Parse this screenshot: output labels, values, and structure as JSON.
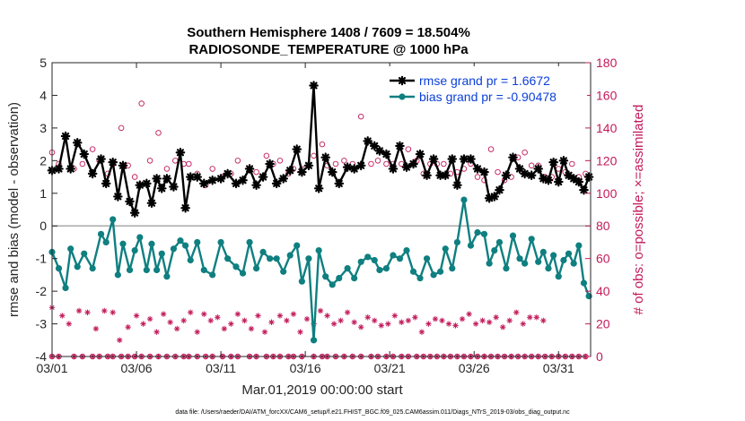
{
  "chart_data": {
    "type": "line",
    "title": [
      "Southern Hemisphere 1408 / 7609 = 18.504%",
      "RADIOSONDE_TEMPERATURE @ 1000 hPa"
    ],
    "xlabel": "Mar.01,2019 00:00:00 start",
    "ylabel": "rmse and bias (model - observation)",
    "y2label": "# of obs: o=possible; ×=assimilated",
    "footnote": "data file: /Users/raeder/DAI/ATM_forcXX/CAM6_setup/f.e21.FHIST_BGC.f09_025.CAM6assim.011/Diags_NTrS_2019-03/obs_diag_output.nc",
    "xlim": [
      1,
      32
    ],
    "ylim": [
      -4,
      5
    ],
    "y2lim": [
      0,
      180
    ],
    "xticks": [
      1,
      6,
      11,
      16,
      21,
      26,
      31
    ],
    "xticklabels": [
      "03/01",
      "03/06",
      "03/11",
      "03/16",
      "03/21",
      "03/26",
      "03/31"
    ],
    "yticks": [
      -4,
      -3,
      -2,
      -1,
      0,
      1,
      2,
      3,
      4,
      5
    ],
    "y2ticks": [
      0,
      20,
      40,
      60,
      80,
      100,
      120,
      140,
      160,
      180
    ],
    "zero_line": 0,
    "legend_position": "top-right",
    "series": [
      {
        "name": "rmse grand pr = 1.6672",
        "color": "#000000",
        "axis": "left",
        "marker": "star",
        "values": [
          1.7,
          1.75,
          2.75,
          1.75,
          2.55,
          2.2,
          1.6,
          2.05,
          1.3,
          1.95,
          0.9,
          1.85,
          0.75,
          0.4,
          1.25,
          1.3,
          0.7,
          1.45,
          1.15,
          1.45,
          1.2,
          2.25,
          0.55,
          1.5,
          1.5,
          1.3,
          1.4,
          1.45,
          1.6,
          1.3,
          1.4,
          1.75,
          1.25,
          1.5,
          1.9,
          1.3,
          1.45,
          1.7,
          2.35,
          1.65,
          1.85,
          4.3,
          1.15,
          2.1,
          1.65,
          1.3,
          1.8,
          1.75,
          1.85,
          2.6,
          2.45,
          2.3,
          2.2,
          1.75,
          2.45,
          1.8,
          1.9,
          2.2,
          1.55,
          2.05,
          1.55,
          1.55,
          2.05,
          1.25,
          2.05,
          2.05,
          1.75,
          1.65,
          0.85,
          0.9,
          1.1,
          1.55,
          2.1,
          1.75,
          1.6,
          1.55,
          1.75,
          1.45,
          1.4,
          1.95,
          1.35,
          2.0,
          1.55,
          1.45,
          1.35,
          1.1,
          1.5
        ],
        "x": [
          1.0,
          1.4,
          1.8,
          2.1,
          2.5,
          2.9,
          3.4,
          3.9,
          4.2,
          4.6,
          4.9,
          5.2,
          5.6,
          5.9,
          6.2,
          6.6,
          6.9,
          7.2,
          7.5,
          7.8,
          8.2,
          8.6,
          8.9,
          9.2,
          9.6,
          10.0,
          10.5,
          11.0,
          11.4,
          11.9,
          12.3,
          12.7,
          13.1,
          13.5,
          13.9,
          14.3,
          14.7,
          15.1,
          15.5,
          15.8,
          16.2,
          16.5,
          16.8,
          17.2,
          17.6,
          18.0,
          18.5,
          18.9,
          19.3,
          19.7,
          20.1,
          20.4,
          20.8,
          21.2,
          21.6,
          22.0,
          22.4,
          22.8,
          23.2,
          23.6,
          24.0,
          24.3,
          24.7,
          25.0,
          25.4,
          25.8,
          26.2,
          26.6,
          26.9,
          27.2,
          27.5,
          27.9,
          28.3,
          28.7,
          29.0,
          29.4,
          29.8,
          30.1,
          30.4,
          30.7,
          31.0,
          31.3,
          31.6,
          31.9,
          32.2,
          32.5,
          32.8
        ]
      },
      {
        "name": "bias grand pr = -0.90478",
        "color": "#0f7f80",
        "axis": "left",
        "marker": "dot",
        "values": [
          -0.8,
          -1.3,
          -1.9,
          -0.7,
          -1.25,
          -0.85,
          -1.3,
          -0.25,
          -0.5,
          0.2,
          -1.5,
          -0.55,
          -1.35,
          -0.75,
          -0.35,
          -1.35,
          -0.55,
          -1.35,
          -0.85,
          -1.55,
          -0.7,
          -0.45,
          -0.6,
          -1.05,
          -0.5,
          -1.35,
          -1.5,
          -0.5,
          -1.0,
          -1.25,
          -1.45,
          -0.5,
          -1.3,
          -0.8,
          -1.0,
          -1.0,
          -1.4,
          -0.9,
          -0.6,
          -1.7,
          -1.0,
          -3.5,
          -0.75,
          -1.55,
          -1.8,
          -1.6,
          -1.3,
          -1.6,
          -1.1,
          -0.95,
          -1.05,
          -1.35,
          -1.3,
          -0.9,
          -1.0,
          -0.75,
          -1.4,
          -1.6,
          -1.0,
          -1.5,
          -1.4,
          -0.7,
          -1.3,
          -0.5,
          0.8,
          -0.6,
          -0.2,
          -0.25,
          -1.15,
          -0.75,
          -0.5,
          -1.3,
          -0.3,
          -1.0,
          -1.15,
          -0.4,
          -1.1,
          -0.8,
          -1.3,
          -0.9,
          -1.55,
          -1.05,
          -0.85,
          -1.15,
          -0.6,
          -1.75,
          -2.15
        ],
        "x": [
          1.0,
          1.4,
          1.8,
          2.1,
          2.5,
          2.9,
          3.4,
          3.9,
          4.2,
          4.6,
          4.9,
          5.2,
          5.6,
          5.9,
          6.2,
          6.6,
          6.9,
          7.2,
          7.5,
          7.8,
          8.2,
          8.6,
          8.9,
          9.2,
          9.6,
          10.0,
          10.5,
          11.0,
          11.4,
          11.9,
          12.3,
          12.7,
          13.1,
          13.5,
          13.9,
          14.3,
          14.7,
          15.1,
          15.5,
          15.8,
          16.2,
          16.5,
          16.8,
          17.2,
          17.6,
          18.0,
          18.5,
          18.9,
          19.3,
          19.7,
          20.1,
          20.4,
          20.8,
          21.2,
          21.6,
          22.0,
          22.4,
          22.8,
          23.2,
          23.6,
          24.0,
          24.3,
          24.7,
          25.0,
          25.4,
          25.8,
          26.2,
          26.6,
          26.9,
          27.2,
          27.5,
          27.9,
          28.3,
          28.7,
          29.0,
          29.4,
          29.8,
          30.1,
          30.4,
          30.7,
          31.0,
          31.3,
          31.6,
          31.9,
          32.2,
          32.5,
          32.8
        ]
      },
      {
        "name": "obs possible",
        "color": "#c21a5a",
        "axis": "right",
        "marker": "circle",
        "values": [
          125,
          118,
          115,
          118,
          127,
          120,
          112,
          118,
          140,
          117,
          110,
          155,
          120,
          137,
          115,
          120,
          118,
          118,
          112,
          105,
          115,
          110,
          112,
          120,
          115,
          113,
          123,
          118,
          120,
          112,
          115,
          115,
          123,
          130,
          117,
          118,
          120,
          118,
          147,
          118,
          120,
          118,
          118,
          118,
          127,
          120,
          112,
          118,
          118,
          118,
          112,
          113,
          115,
          118,
          110,
          108,
          127,
          113,
          108,
          110,
          122,
          125,
          117,
          117,
          110,
          110,
          115,
          113,
          118,
          110,
          112
        ],
        "x": [
          1.0,
          1.4,
          2.3,
          2.8,
          3.4,
          3.8,
          4.3,
          4.6,
          5.1,
          5.5,
          5.9,
          6.3,
          6.8,
          7.3,
          7.8,
          8.3,
          8.8,
          9.1,
          9.6,
          10.1,
          10.5,
          11.1,
          11.6,
          12.0,
          12.7,
          13.1,
          13.7,
          14.1,
          14.5,
          15.0,
          15.3,
          15.8,
          16.5,
          17.0,
          17.3,
          17.8,
          18.3,
          18.8,
          19.3,
          19.9,
          20.3,
          20.8,
          21.2,
          21.7,
          22.1,
          22.6,
          23.0,
          23.4,
          23.8,
          24.2,
          24.6,
          25.0,
          25.4,
          25.8,
          26.2,
          26.6,
          27.0,
          27.4,
          27.8,
          28.2,
          28.6,
          29.0,
          29.4,
          29.8,
          30.2,
          30.6,
          31.0,
          31.4,
          31.8,
          32.2,
          32.6
        ]
      },
      {
        "name": "obs assimilated",
        "color": "#c21a5a",
        "axis": "right",
        "marker": "asterisk",
        "values": [
          30,
          25,
          20,
          28,
          27,
          17,
          28,
          27,
          10,
          18,
          25,
          20,
          23,
          15,
          26,
          21,
          17,
          22,
          27,
          15,
          26,
          22,
          24,
          17,
          20,
          26,
          22,
          17,
          25,
          15,
          21,
          25,
          22,
          26,
          15,
          23,
          20,
          28,
          25,
          20,
          22,
          27,
          21,
          18,
          24,
          22,
          19,
          20,
          25,
          21,
          22,
          24,
          15,
          20,
          23,
          22,
          20,
          19,
          23,
          26,
          20,
          22,
          21,
          24,
          18,
          22,
          27,
          20,
          24,
          24,
          22
        ],
        "x": [
          1.0,
          1.6,
          2.0,
          2.6,
          3.1,
          3.6,
          4.1,
          4.6,
          5.0,
          5.5,
          6.0,
          6.4,
          6.8,
          7.2,
          7.6,
          8.0,
          8.4,
          8.8,
          9.2,
          9.6,
          10.0,
          10.4,
          10.8,
          11.2,
          11.6,
          12.0,
          12.4,
          12.8,
          13.2,
          13.6,
          14.0,
          14.5,
          14.9,
          15.3,
          15.7,
          16.1,
          16.5,
          16.9,
          17.3,
          17.7,
          18.1,
          18.5,
          18.9,
          19.3,
          19.7,
          20.1,
          20.5,
          20.9,
          21.3,
          21.7,
          22.1,
          22.5,
          22.9,
          23.3,
          23.7,
          24.1,
          24.5,
          24.9,
          25.3,
          25.7,
          26.1,
          26.5,
          26.9,
          27.3,
          27.7,
          28.1,
          28.5,
          28.9,
          29.3,
          29.7,
          30.1
        ]
      }
    ]
  }
}
